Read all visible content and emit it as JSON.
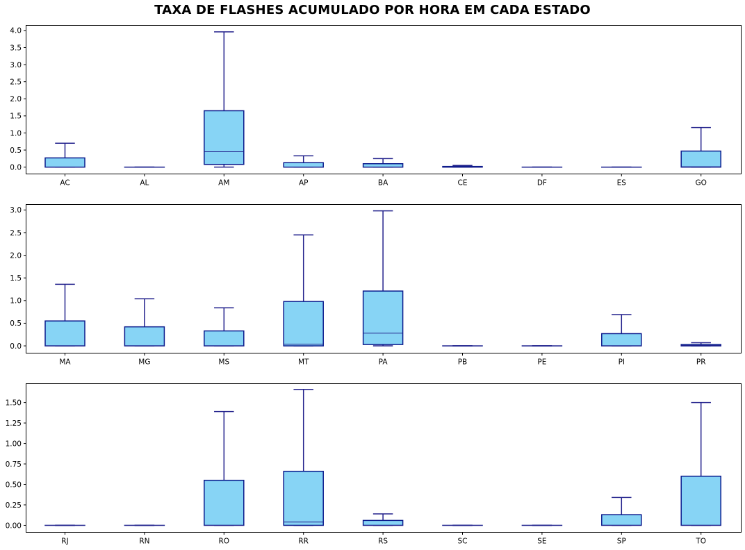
{
  "title": "TAXA DE FLASHES ACUMULADO POR HORA EM CADA ESTADO",
  "colors": {
    "box_fill": "#87d4f5",
    "box_edge": "#0a1a8c",
    "whisker": "#22218c",
    "axis": "#000000"
  },
  "chart_data": [
    {
      "type": "box",
      "ylim": [
        -0.2,
        4.15
      ],
      "yticks": [
        "0.0",
        "0.5",
        "1.0",
        "1.5",
        "2.0",
        "2.5",
        "3.0",
        "3.5",
        "4.0"
      ],
      "categories": [
        "AC",
        "AL",
        "AM",
        "AP",
        "BA",
        "CE",
        "DF",
        "ES",
        "GO"
      ],
      "boxes": [
        {
          "label": "AC",
          "whislo": 0,
          "q1": 0,
          "median": 0,
          "q3": 0.27,
          "whishi": 0.7
        },
        {
          "label": "AL",
          "whislo": 0,
          "q1": 0,
          "median": 0,
          "q3": 0,
          "whishi": 0
        },
        {
          "label": "AM",
          "whislo": 0,
          "q1": 0.08,
          "median": 0.45,
          "q3": 1.65,
          "whishi": 3.96
        },
        {
          "label": "AP",
          "whislo": 0,
          "q1": 0,
          "median": 0,
          "q3": 0.13,
          "whishi": 0.33
        },
        {
          "label": "BA",
          "whislo": 0,
          "q1": 0,
          "median": 0,
          "q3": 0.1,
          "whishi": 0.25
        },
        {
          "label": "CE",
          "whislo": 0,
          "q1": 0,
          "median": 0,
          "q3": 0.02,
          "whishi": 0.05
        },
        {
          "label": "DF",
          "whislo": 0,
          "q1": 0,
          "median": 0,
          "q3": 0,
          "whishi": 0
        },
        {
          "label": "ES",
          "whislo": 0,
          "q1": 0,
          "median": 0,
          "q3": 0,
          "whishi": 0
        },
        {
          "label": "GO",
          "whislo": 0,
          "q1": 0,
          "median": 0.01,
          "q3": 0.47,
          "whishi": 1.16
        }
      ]
    },
    {
      "type": "box",
      "ylim": [
        -0.16,
        3.12
      ],
      "yticks": [
        "0.0",
        "0.5",
        "1.0",
        "1.5",
        "2.0",
        "2.5",
        "3.0"
      ],
      "categories": [
        "MA",
        "MG",
        "MS",
        "MT",
        "PA",
        "PB",
        "PE",
        "PI",
        "PR"
      ],
      "boxes": [
        {
          "label": "MA",
          "whislo": 0,
          "q1": 0,
          "median": 0,
          "q3": 0.55,
          "whishi": 1.36
        },
        {
          "label": "MG",
          "whislo": 0,
          "q1": 0,
          "median": 0,
          "q3": 0.42,
          "whishi": 1.04
        },
        {
          "label": "MS",
          "whislo": 0,
          "q1": 0,
          "median": 0,
          "q3": 0.33,
          "whishi": 0.84
        },
        {
          "label": "MT",
          "whislo": 0,
          "q1": 0,
          "median": 0.04,
          "q3": 0.98,
          "whishi": 2.45
        },
        {
          "label": "PA",
          "whislo": 0,
          "q1": 0.03,
          "median": 0.28,
          "q3": 1.21,
          "whishi": 2.98
        },
        {
          "label": "PB",
          "whislo": 0,
          "q1": 0,
          "median": 0,
          "q3": 0,
          "whishi": 0
        },
        {
          "label": "PE",
          "whislo": 0,
          "q1": 0,
          "median": 0,
          "q3": 0,
          "whishi": 0
        },
        {
          "label": "PI",
          "whislo": 0,
          "q1": 0,
          "median": 0,
          "q3": 0.27,
          "whishi": 0.69
        },
        {
          "label": "PR",
          "whislo": 0,
          "q1": 0,
          "median": 0.01,
          "q3": 0.03,
          "whishi": 0.07
        }
      ]
    },
    {
      "type": "box",
      "ylim": [
        -0.085,
        1.73
      ],
      "yticks": [
        "0.00",
        "0.25",
        "0.50",
        "0.75",
        "1.00",
        "1.25",
        "1.50"
      ],
      "categories": [
        "RJ",
        "RN",
        "RO",
        "RR",
        "RS",
        "SC",
        "SE",
        "SP",
        "TO"
      ],
      "boxes": [
        {
          "label": "RJ",
          "whislo": 0,
          "q1": 0,
          "median": 0,
          "q3": 0,
          "whishi": 0
        },
        {
          "label": "RN",
          "whislo": 0,
          "q1": 0,
          "median": 0,
          "q3": 0,
          "whishi": 0
        },
        {
          "label": "RO",
          "whislo": 0,
          "q1": 0,
          "median": 0,
          "q3": 0.55,
          "whishi": 1.39
        },
        {
          "label": "RR",
          "whislo": 0,
          "q1": 0,
          "median": 0.04,
          "q3": 0.66,
          "whishi": 1.66
        },
        {
          "label": "RS",
          "whislo": 0,
          "q1": 0,
          "median": 0,
          "q3": 0.06,
          "whishi": 0.14
        },
        {
          "label": "SC",
          "whislo": 0,
          "q1": 0,
          "median": 0,
          "q3": 0,
          "whishi": 0
        },
        {
          "label": "SE",
          "whislo": 0,
          "q1": 0,
          "median": 0,
          "q3": 0,
          "whishi": 0
        },
        {
          "label": "SP",
          "whislo": 0,
          "q1": 0,
          "median": 0,
          "q3": 0.13,
          "whishi": 0.34
        },
        {
          "label": "TO",
          "whislo": 0,
          "q1": 0,
          "median": 0,
          "q3": 0.6,
          "whishi": 1.5
        }
      ]
    }
  ]
}
